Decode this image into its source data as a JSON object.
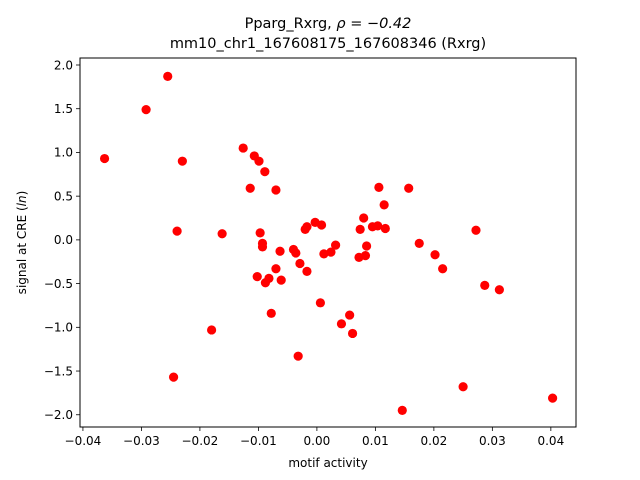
{
  "chart_data": {
    "type": "scatter",
    "title_line1_prefix": "Pparg_Rxrg, ",
    "title_line1_rho": "ρ = −0.42",
    "title_line2": "mm10_chr1_167608175_167608346 (Rxrg)",
    "xlabel": "motif activity",
    "ylabel_prefix": "signal at CRE (",
    "ylabel_italic": "ln",
    "ylabel_suffix": ")",
    "xlim": [
      -0.0405,
      0.0443
    ],
    "ylim": [
      -2.14,
      2.08
    ],
    "x_ticks": [
      {
        "value": -0.04,
        "label": "−0.04"
      },
      {
        "value": -0.03,
        "label": "−0.03"
      },
      {
        "value": -0.02,
        "label": "−0.02"
      },
      {
        "value": -0.01,
        "label": "−0.01"
      },
      {
        "value": 0.0,
        "label": "0.00"
      },
      {
        "value": 0.01,
        "label": "0.01"
      },
      {
        "value": 0.02,
        "label": "0.02"
      },
      {
        "value": 0.03,
        "label": "0.03"
      },
      {
        "value": 0.04,
        "label": "0.04"
      }
    ],
    "y_ticks": [
      {
        "value": 2.0,
        "label": "2.0"
      },
      {
        "value": 1.5,
        "label": "1.5"
      },
      {
        "value": 1.0,
        "label": "1.0"
      },
      {
        "value": 0.5,
        "label": "0.5"
      },
      {
        "value": 0.0,
        "label": "0.0"
      },
      {
        "value": -0.5,
        "label": "−0.5"
      },
      {
        "value": -1.0,
        "label": "−1.0"
      },
      {
        "value": -1.5,
        "label": "−1.5"
      },
      {
        "value": -2.0,
        "label": "−2.0"
      }
    ],
    "point_color": "#ff0000",
    "grid": false,
    "points": [
      [
        -0.0363,
        0.93
      ],
      [
        -0.0292,
        1.49
      ],
      [
        -0.0255,
        1.87
      ],
      [
        -0.0245,
        -1.57
      ],
      [
        -0.0239,
        0.1
      ],
      [
        -0.023,
        0.9
      ],
      [
        -0.018,
        -1.03
      ],
      [
        -0.0162,
        0.07
      ],
      [
        -0.0126,
        1.05
      ],
      [
        -0.0114,
        0.59
      ],
      [
        -0.0107,
        0.96
      ],
      [
        -0.0102,
        -0.42
      ],
      [
        -0.0099,
        0.9
      ],
      [
        -0.0097,
        0.08
      ],
      [
        -0.0093,
        -0.04
      ],
      [
        -0.0093,
        -0.08
      ],
      [
        -0.0089,
        0.78
      ],
      [
        -0.0088,
        -0.49
      ],
      [
        -0.0082,
        -0.44
      ],
      [
        -0.0078,
        -0.84
      ],
      [
        -0.007,
        0.57
      ],
      [
        -0.007,
        -0.33
      ],
      [
        -0.0063,
        -0.13
      ],
      [
        -0.0061,
        -0.46
      ],
      [
        -0.004,
        -0.11
      ],
      [
        -0.0036,
        -0.15
      ],
      [
        -0.0032,
        -1.33
      ],
      [
        -0.0029,
        -0.27
      ],
      [
        -0.002,
        0.12
      ],
      [
        -0.0017,
        0.15
      ],
      [
        -0.0017,
        -0.36
      ],
      [
        -0.0003,
        0.2
      ],
      [
        0.0006,
        -0.72
      ],
      [
        0.0008,
        0.17
      ],
      [
        0.0012,
        -0.16
      ],
      [
        0.0024,
        -0.14
      ],
      [
        0.0032,
        -0.06
      ],
      [
        0.0042,
        -0.96
      ],
      [
        0.0056,
        -0.86
      ],
      [
        0.0061,
        -1.07
      ],
      [
        0.0072,
        -0.2
      ],
      [
        0.0074,
        0.12
      ],
      [
        0.008,
        0.25
      ],
      [
        0.0083,
        -0.18
      ],
      [
        0.0085,
        -0.07
      ],
      [
        0.0095,
        0.15
      ],
      [
        0.0104,
        0.16
      ],
      [
        0.0106,
        0.6
      ],
      [
        0.0115,
        0.4
      ],
      [
        0.0117,
        0.13
      ],
      [
        0.0146,
        -1.95
      ],
      [
        0.0157,
        0.59
      ],
      [
        0.0175,
        -0.04
      ],
      [
        0.0202,
        -0.17
      ],
      [
        0.0215,
        -0.33
      ],
      [
        0.025,
        -1.68
      ],
      [
        0.0272,
        0.11
      ],
      [
        0.0287,
        -0.52
      ],
      [
        0.0312,
        -0.57
      ],
      [
        0.0403,
        -1.81
      ]
    ]
  }
}
